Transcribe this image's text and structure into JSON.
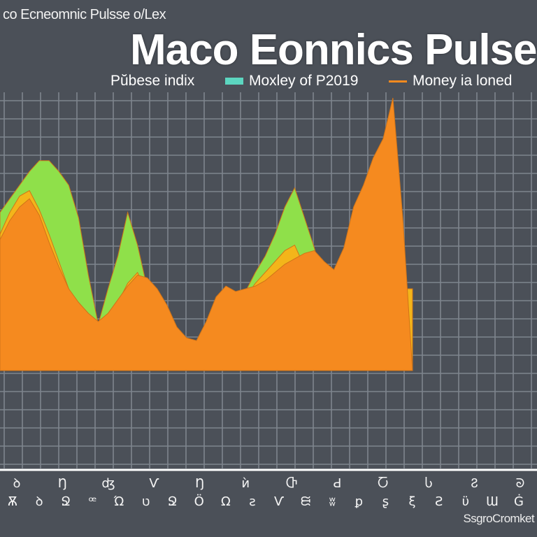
{
  "header": {
    "window_title": "co Ecneomnic Pulsse  o/Lex",
    "chart_title": "Maco Eonnics Pulse"
  },
  "legend": [
    {
      "label": "Pŭbese indix",
      "color": "#8fe04a",
      "marker": "none"
    },
    {
      "label": "Moxley of P2019",
      "color": "#5cd6c0",
      "marker": "swatch"
    },
    {
      "label": "Money ia loned",
      "color": "#f58a1f",
      "marker": "dash"
    }
  ],
  "source": "SsgroCromket",
  "colors": {
    "background": "#4b5058",
    "grid": "#7e858e",
    "green": "#8fe04a",
    "yellow": "#f3b51a",
    "orange": "#f58a1f"
  },
  "chart_data": {
    "type": "area",
    "title": "Maco Eonnics Pulse",
    "xlabel": "",
    "ylabel": "",
    "x": [
      0,
      1,
      2,
      3,
      4,
      5,
      6,
      7,
      8,
      9,
      10,
      11,
      12,
      13,
      14,
      15,
      16,
      17,
      18,
      19,
      20,
      21,
      22,
      23,
      24,
      25,
      26,
      27,
      28,
      29,
      30,
      31,
      32,
      33,
      34,
      35,
      36,
      37,
      38,
      39,
      40,
      41,
      42
    ],
    "ylim": [
      0,
      100
    ],
    "grid": true,
    "legend_position": "top",
    "series": [
      {
        "color": "#8fe04a",
        "values": [
          58,
          63,
          68,
          73,
          77,
          77,
          73,
          68,
          56,
          35,
          17,
          30,
          42,
          58,
          46,
          30,
          24,
          18,
          13,
          8,
          2,
          5,
          10,
          15,
          21,
          29,
          36,
          42,
          50,
          60,
          67,
          56,
          45,
          31,
          25,
          24,
          22,
          28,
          30,
          19,
          8,
          20,
          28
        ]
      },
      {
        "color": "#f3b51a",
        "values": [
          50,
          58,
          64,
          66,
          59,
          50,
          40,
          30,
          22,
          14,
          8,
          15,
          25,
          32,
          36,
          28,
          20,
          14,
          8,
          4,
          0,
          4,
          10,
          16,
          22,
          27,
          32,
          36,
          40,
          44,
          46,
          38,
          30,
          25,
          22,
          23,
          25,
          27,
          27,
          28,
          29,
          30,
          30
        ]
      },
      {
        "color": "#f58a1f",
        "values": [
          48,
          55,
          60,
          63,
          57,
          47,
          38,
          30,
          25,
          21,
          18,
          21,
          26,
          31,
          35,
          34,
          30,
          24,
          16,
          12,
          11,
          18,
          27,
          31,
          29,
          30,
          31,
          33,
          36,
          39,
          41,
          43,
          44,
          40,
          37,
          45,
          60,
          68,
          78,
          85,
          100,
          56,
          0
        ]
      }
    ],
    "x_tick_labels_row1": [
      "ꝺ",
      "Ŋ",
      "ʤ",
      "Ѵ",
      "Ŋ",
      "ѝ",
      "Ⴇ",
      "Ԁ",
      "Ⴀ",
      "Ⴑ",
      "Ჷ",
      "ᘐ"
    ],
    "x_tick_labels_row2": [
      "Ѫ",
      "ꝺ",
      "Ջ",
      "ꟹ",
      "Ώ",
      "ט",
      "Ջ",
      "Ö",
      "Ω",
      "ƨ",
      "Ѵ",
      "ᙦ",
      "ʬ",
      "ꝑ",
      "ʂ",
      "ξ",
      "Ƨ",
      "ϋ",
      "Ɯ",
      "Ġ"
    ]
  }
}
